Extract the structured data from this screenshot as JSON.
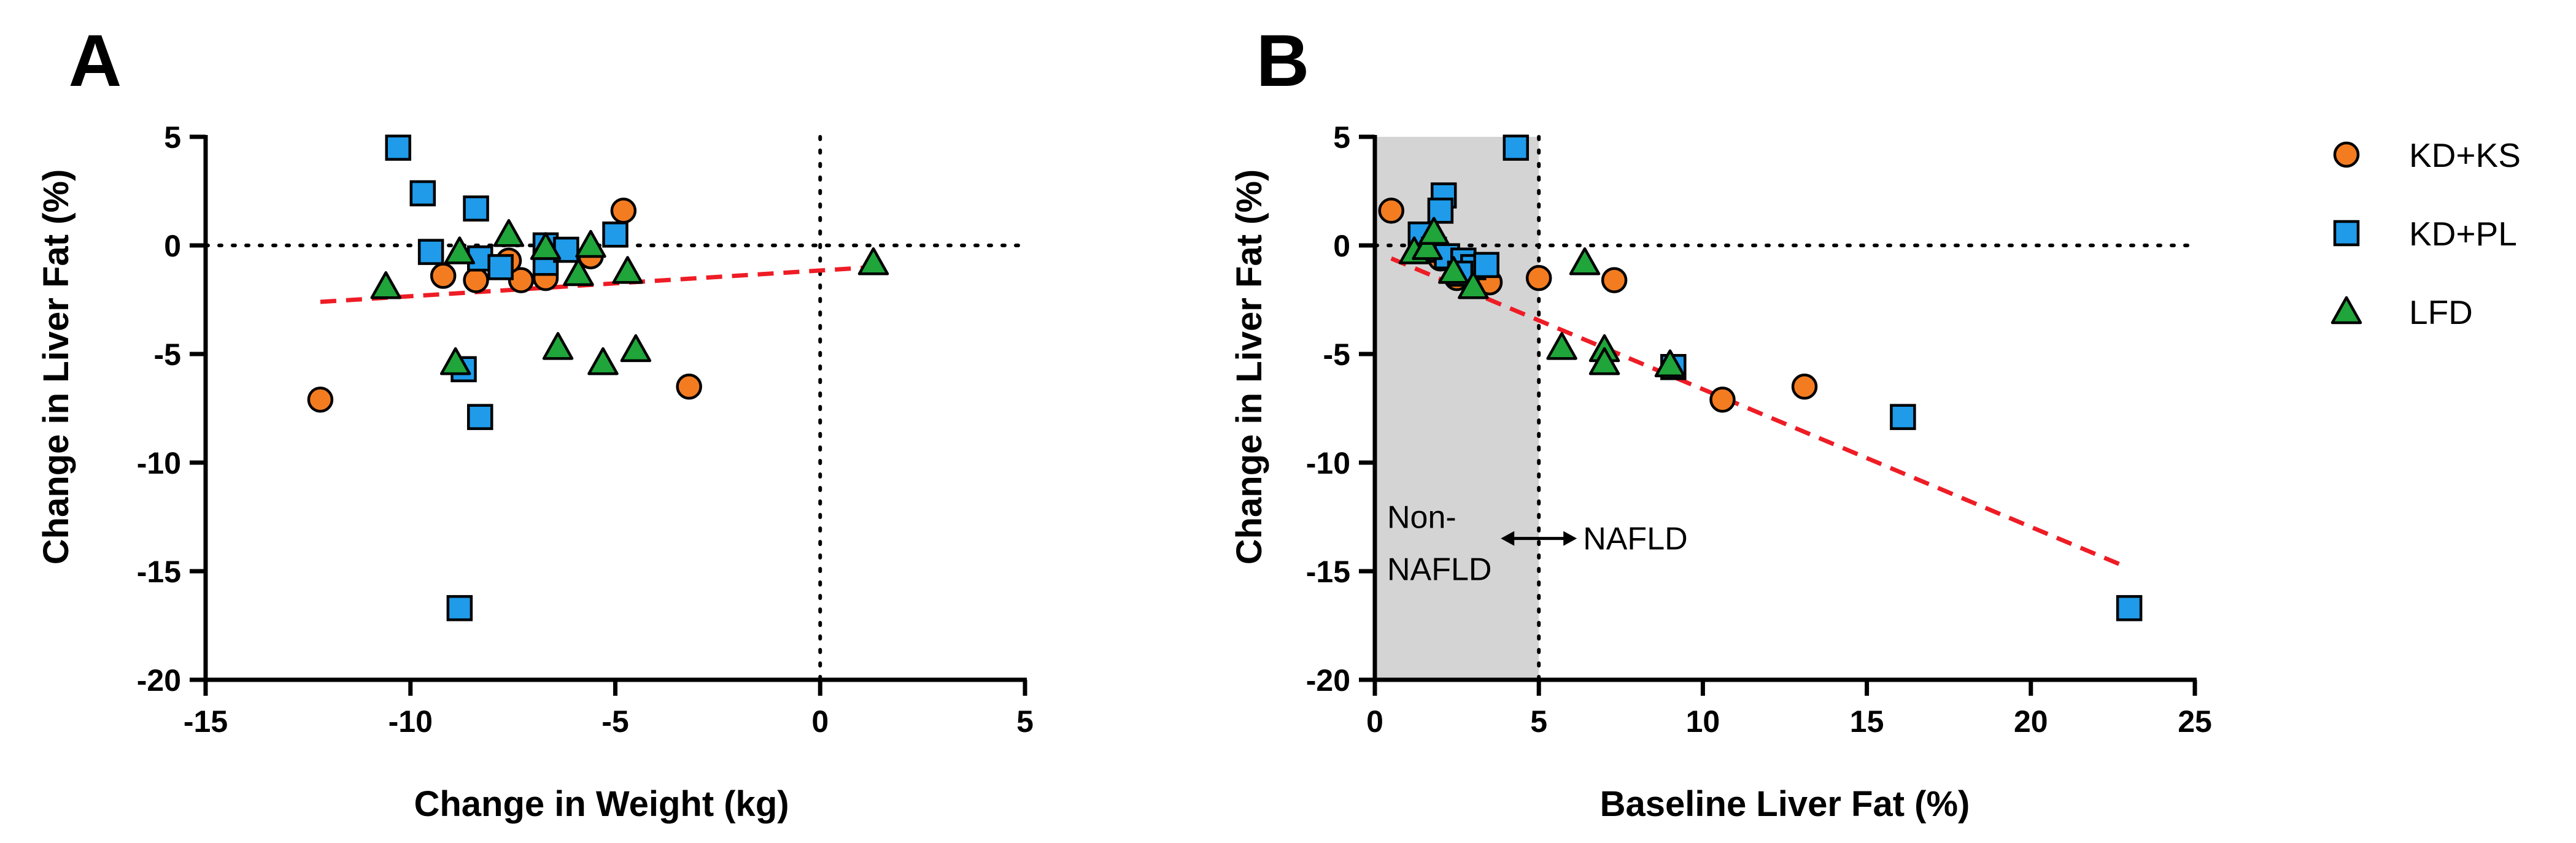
{
  "colors": {
    "ks": "#f47c20",
    "pl": "#1f9bea",
    "lfd": "#1fa53a",
    "fit": "#ee1c25",
    "shade": "#d4d4d4"
  },
  "legend": [
    {
      "key": "ks",
      "label": "KD+KS",
      "shape": "circle"
    },
    {
      "key": "pl",
      "label": "KD+PL",
      "shape": "square"
    },
    {
      "key": "lfd",
      "label": "LFD",
      "shape": "triangle"
    }
  ],
  "chart_data": [
    {
      "panel": "A",
      "type": "scatter",
      "xlabel": "Change in Weight (kg)",
      "ylabel": "Change in Liver Fat (%)",
      "xlim": [
        -15,
        5
      ],
      "ylim": [
        -20,
        5
      ],
      "xticks": [
        -15,
        -10,
        -5,
        0,
        5
      ],
      "yticks": [
        5,
        0,
        -5,
        -10,
        -15,
        -20
      ],
      "ref_x": 0,
      "ref_y": 0,
      "fit_line": [
        [
          -12.2,
          -2.6
        ],
        [
          1.3,
          -1.0
        ]
      ],
      "series": [
        {
          "key": "ks",
          "name": "KD+KS",
          "points": [
            [
              -12.2,
              -7.1
            ],
            [
              -9.2,
              -1.4
            ],
            [
              -8.4,
              -1.6
            ],
            [
              -7.3,
              -1.6
            ],
            [
              -6.7,
              -1.5
            ],
            [
              -7.6,
              -0.7
            ],
            [
              -5.6,
              -0.5
            ],
            [
              -4.8,
              1.6
            ],
            [
              -3.2,
              -6.5
            ]
          ]
        },
        {
          "key": "pl",
          "name": "KD+PL",
          "points": [
            [
              -10.3,
              4.5
            ],
            [
              -9.7,
              2.4
            ],
            [
              -9.5,
              -0.3
            ],
            [
              -8.4,
              1.7
            ],
            [
              -8.3,
              -0.6
            ],
            [
              -7.8,
              -1.0
            ],
            [
              -6.7,
              0.0
            ],
            [
              -6.7,
              -0.8
            ],
            [
              -6.2,
              -0.2
            ],
            [
              -5.0,
              0.5
            ],
            [
              -8.7,
              -5.7
            ],
            [
              -8.3,
              -7.9
            ],
            [
              -8.8,
              -16.7
            ]
          ]
        },
        {
          "key": "lfd",
          "name": "LFD",
          "points": [
            [
              -10.6,
              -1.9
            ],
            [
              -8.8,
              -0.3
            ],
            [
              -8.9,
              -5.4
            ],
            [
              -7.6,
              0.5
            ],
            [
              -6.7,
              -0.1
            ],
            [
              -5.6,
              0.0
            ],
            [
              -5.9,
              -1.3
            ],
            [
              -4.7,
              -1.2
            ],
            [
              -6.4,
              -4.7
            ],
            [
              -5.3,
              -5.4
            ],
            [
              -4.5,
              -4.8
            ],
            [
              1.3,
              -0.8
            ]
          ]
        }
      ]
    },
    {
      "panel": "B",
      "type": "scatter",
      "xlabel": "Baseline Liver Fat (%)",
      "ylabel": "Change in Liver Fat (%)",
      "xlim": [
        0,
        25
      ],
      "ylim": [
        -20,
        5
      ],
      "xticks": [
        0,
        5,
        10,
        15,
        20,
        25
      ],
      "yticks": [
        5,
        0,
        -5,
        -10,
        -15,
        -20
      ],
      "ref_x": 5,
      "ref_y": 0,
      "shaded_region_x": [
        0,
        5
      ],
      "annotation_left": [
        "Non-",
        "NAFLD"
      ],
      "annotation_right": "NAFLD",
      "fit_line": [
        [
          0.5,
          -0.6
        ],
        [
          22.9,
          -14.8
        ]
      ],
      "series": [
        {
          "key": "ks",
          "name": "KD+KS",
          "points": [
            [
              0.5,
              1.6
            ],
            [
              2.0,
              -0.6
            ],
            [
              2.5,
              -1.5
            ],
            [
              3.0,
              -1.6
            ],
            [
              3.5,
              -1.7
            ],
            [
              5.0,
              -1.5
            ],
            [
              7.3,
              -1.6
            ],
            [
              10.6,
              -7.1
            ],
            [
              13.1,
              -6.5
            ]
          ]
        },
        {
          "key": "pl",
          "name": "KD+PL",
          "points": [
            [
              4.3,
              4.5
            ],
            [
              2.1,
              2.3
            ],
            [
              2.0,
              1.6
            ],
            [
              1.4,
              0.5
            ],
            [
              1.8,
              -0.2
            ],
            [
              2.2,
              -0.5
            ],
            [
              2.7,
              -0.7
            ],
            [
              3.0,
              -1.0
            ],
            [
              3.4,
              -0.9
            ],
            [
              2.6,
              -1.3
            ],
            [
              9.1,
              -5.6
            ],
            [
              16.1,
              -7.9
            ],
            [
              23.0,
              -16.7
            ]
          ]
        },
        {
          "key": "lfd",
          "name": "LFD",
          "points": [
            [
              1.2,
              -0.3
            ],
            [
              1.6,
              -0.1
            ],
            [
              1.8,
              0.6
            ],
            [
              2.4,
              -1.2
            ],
            [
              3.0,
              -1.9
            ],
            [
              6.4,
              -0.8
            ],
            [
              5.7,
              -4.7
            ],
            [
              7.0,
              -4.8
            ],
            [
              7.0,
              -5.4
            ],
            [
              9.0,
              -5.5
            ]
          ]
        }
      ]
    }
  ]
}
